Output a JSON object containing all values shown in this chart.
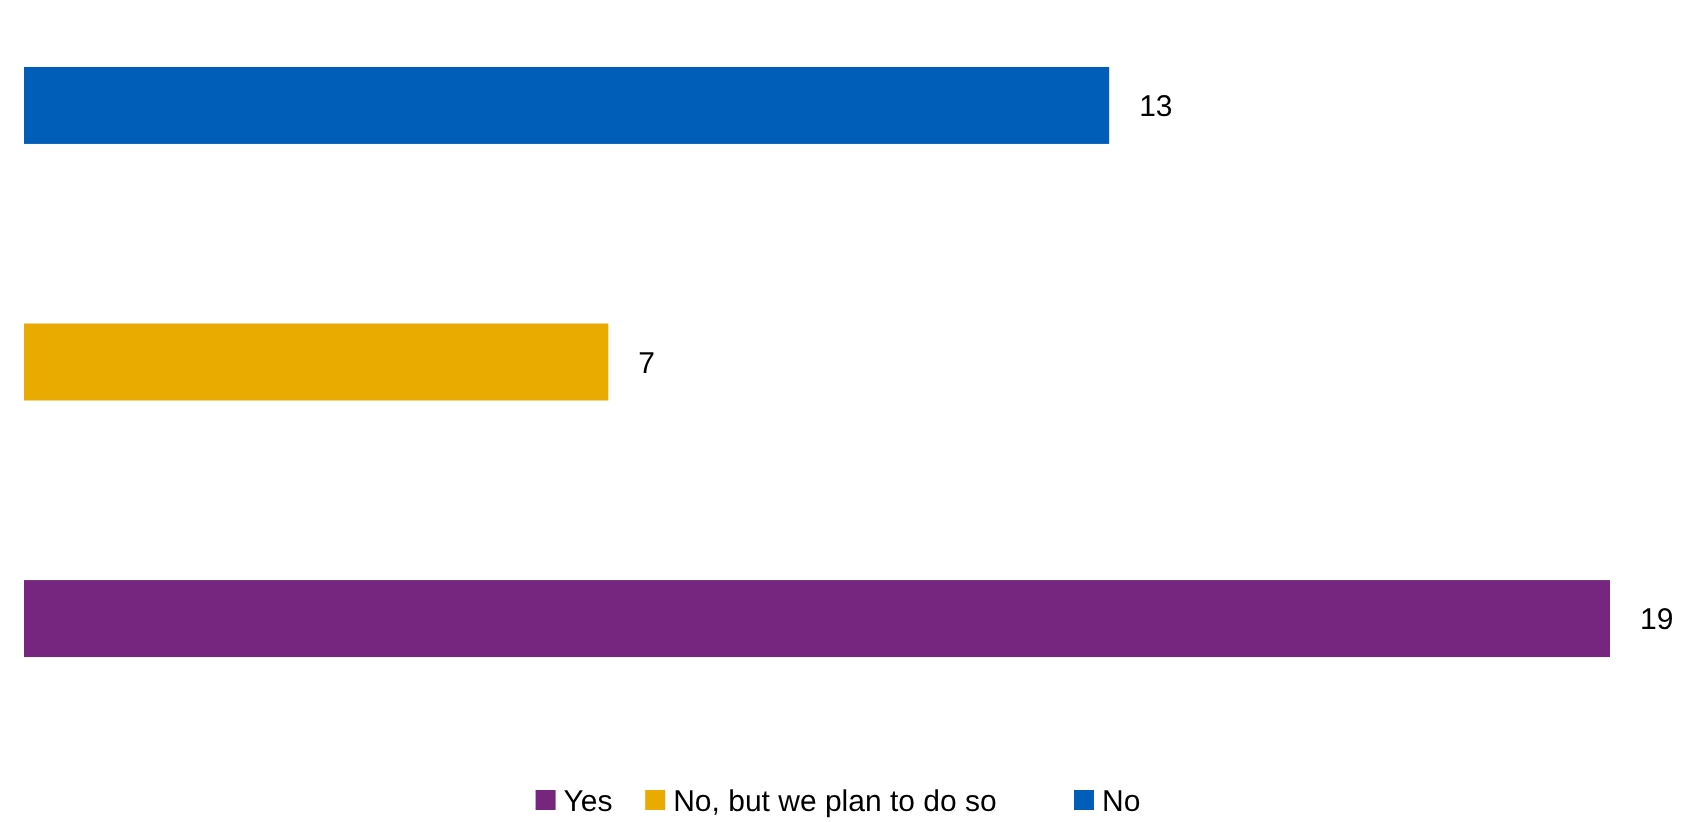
{
  "chart_data": {
    "type": "bar",
    "orientation": "horizontal",
    "stacked": true,
    "categories": [
      null,
      null,
      null
    ],
    "series": [
      {
        "name": "Yes",
        "color": "#76267f",
        "values": [
          null,
          null,
          19
        ]
      },
      {
        "name": "No, but we plan to do so",
        "color": "#eaab00",
        "values": [
          null,
          7,
          null
        ]
      },
      {
        "name": "No",
        "color": "#005eb8",
        "values": [
          13,
          null,
          null
        ]
      }
    ],
    "data_labels": true,
    "legend": "bottom"
  }
}
